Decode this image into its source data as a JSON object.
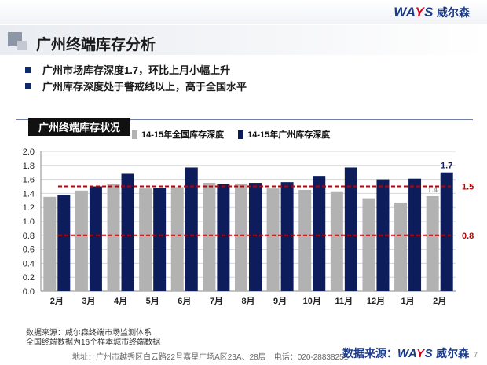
{
  "header": {
    "brand_en_parts": [
      "WA",
      "Y",
      "S"
    ],
    "brand_cn": "威尔森"
  },
  "title": "广州终端库存分析",
  "bullets": [
    "广州市场库存深度1.7，环比上月小幅上升",
    "广州库存深度处于警戒线以上，高于全国水平"
  ],
  "chart_tag": "广州终端库存状况",
  "colors": {
    "national": "#b2b2b2",
    "guangzhou": "#0d1d5c",
    "threshold": "#c00000",
    "brand_blue": "#1a3a8a",
    "brand_red": "#d0021b"
  },
  "chart_data": {
    "type": "bar",
    "categories": [
      "2月",
      "3月",
      "4月",
      "5月",
      "6月",
      "7月",
      "8月",
      "9月",
      "10月",
      "11月",
      "12月",
      "1月",
      "2月"
    ],
    "series": [
      {
        "name": "14-15年全国库存深度",
        "values": [
          1.35,
          1.44,
          1.53,
          1.47,
          1.49,
          1.55,
          1.54,
          1.47,
          1.45,
          1.43,
          1.33,
          1.27,
          1.36
        ]
      },
      {
        "name": "14-15年广州库存深度",
        "values": [
          1.38,
          1.5,
          1.68,
          1.48,
          1.77,
          1.53,
          1.55,
          1.56,
          1.65,
          1.77,
          1.6,
          1.61,
          1.7
        ]
      }
    ],
    "yticks": [
      "0.0",
      "0.2",
      "0.4",
      "0.6",
      "0.8",
      "1.0",
      "1.2",
      "1.4",
      "1.6",
      "1.8",
      "2.0"
    ],
    "ylim": [
      0,
      2.0
    ],
    "grid": "horizontal",
    "reference_lines": [
      {
        "value": 1.5,
        "label": "1.5"
      },
      {
        "value": 0.8,
        "label": "0.8"
      }
    ],
    "data_labels": [
      {
        "series": 1,
        "index": 12,
        "text": "1.7"
      },
      {
        "series": 0,
        "index": 12,
        "text": "1.4"
      }
    ]
  },
  "footer": {
    "notes": [
      "数据来源：威尔森终端市场监测体系",
      "全国终端数据为16个样本城市终端数据"
    ],
    "address": "地址：广州市越秀区白云路22号嘉星广场A区23A、28层　电话：020-28838251",
    "source_prefix": "数据来源：",
    "page_number": "7"
  }
}
